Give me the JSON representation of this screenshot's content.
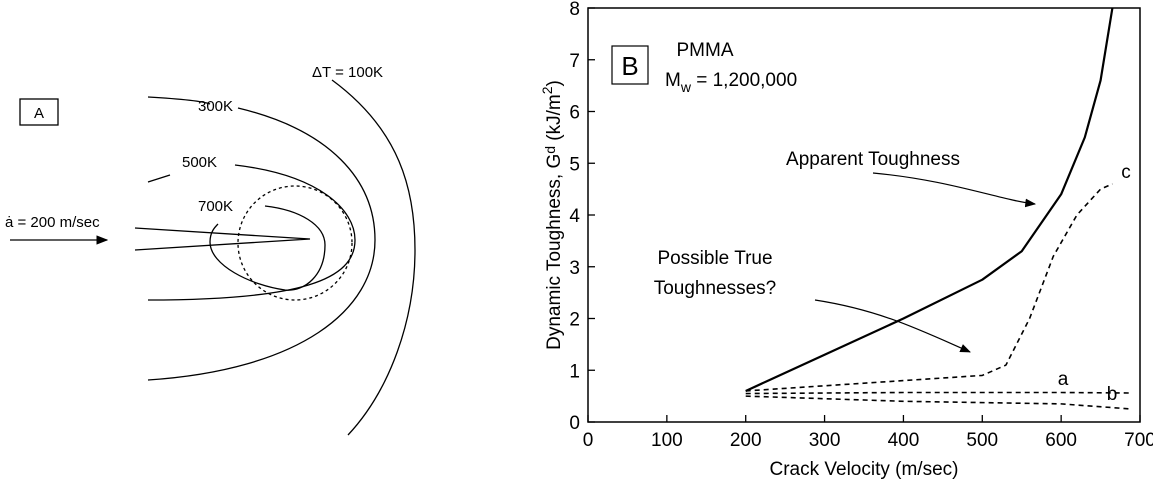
{
  "diagram": {
    "panel_label": "A",
    "contours": [
      "300K",
      "500K",
      "700K"
    ],
    "delta_t": "ΔT = 100K",
    "velocity": "ȧ = 200 m/sec"
  },
  "chart_data": {
    "type": "line",
    "panel_label": "B",
    "xlabel": "Crack Velocity (m/sec)",
    "ylabel": [
      "Dynamic Toughness, G",
      "d",
      " (kJ/m",
      "2",
      ")"
    ],
    "material": [
      "PMMA",
      "M",
      "w",
      " = 1,200,000"
    ],
    "annotations": [
      "Apparent Toughness",
      "Possible True",
      "Toughnesses?"
    ],
    "xlim": [
      0,
      700
    ],
    "ylim": [
      0,
      8
    ],
    "xticks": [
      0,
      100,
      200,
      300,
      400,
      500,
      600,
      700
    ],
    "yticks": [
      0,
      1,
      2,
      3,
      4,
      5,
      6,
      7,
      8
    ],
    "series": [
      {
        "name": "Apparent Toughness",
        "color": "#000000",
        "dash": false,
        "x": [
          200,
          300,
          400,
          500,
          550,
          600,
          630,
          650,
          665
        ],
        "values": [
          0.6,
          1.3,
          2.0,
          2.75,
          3.3,
          4.4,
          5.5,
          6.6,
          8
        ]
      },
      {
        "name": "c",
        "color": "#000000",
        "dash": true,
        "x": [
          200,
          300,
          400,
          500,
          530,
          560,
          590,
          620,
          650,
          665
        ],
        "values": [
          0.6,
          0.7,
          0.8,
          0.9,
          1.1,
          2.0,
          3.2,
          4.0,
          4.5,
          4.6
        ]
      },
      {
        "name": "a",
        "color": "#000000",
        "dash": true,
        "x": [
          200,
          400,
          600,
          690
        ],
        "values": [
          0.55,
          0.57,
          0.57,
          0.56
        ]
      },
      {
        "name": "b",
        "color": "#000000",
        "dash": true,
        "x": [
          200,
          400,
          600,
          690
        ],
        "values": [
          0.5,
          0.4,
          0.35,
          0.25
        ]
      }
    ]
  }
}
